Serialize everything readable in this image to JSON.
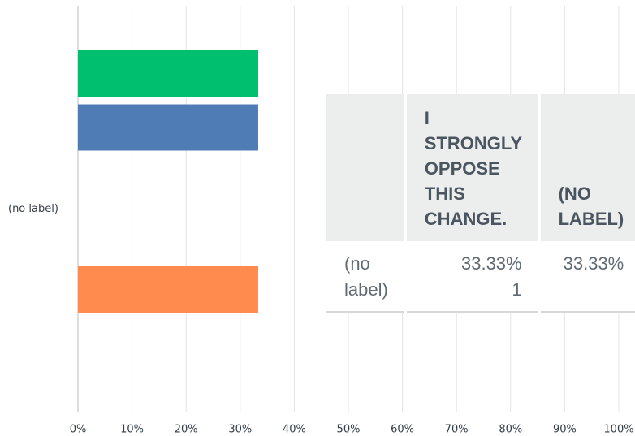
{
  "chart_data": {
    "type": "bar",
    "orientation": "horizontal",
    "categories": [
      "(no label)"
    ],
    "series": [
      {
        "color": "#00bf6f",
        "values": [
          33.33
        ]
      },
      {
        "color": "#507cb6",
        "values": [
          33.33
        ]
      },
      {
        "color": "#f9be00",
        "values": [
          0
        ]
      },
      {
        "color": "#6bc8cd",
        "values": [
          0
        ]
      },
      {
        "color": "#ff8b4f",
        "values": [
          33.33
        ]
      }
    ],
    "xlim": [
      0,
      100
    ],
    "xticks": [
      {
        "value": 0,
        "label": "0%"
      },
      {
        "value": 10,
        "label": "10%"
      },
      {
        "value": 20,
        "label": "20%"
      },
      {
        "value": 30,
        "label": "30%"
      },
      {
        "value": 40,
        "label": "40%"
      },
      {
        "value": 50,
        "label": "50%"
      },
      {
        "value": 60,
        "label": "60%"
      },
      {
        "value": 70,
        "label": "70%"
      },
      {
        "value": 80,
        "label": "80%"
      },
      {
        "value": 90,
        "label": "90%"
      },
      {
        "value": 100,
        "label": "100%"
      }
    ],
    "grid": true
  },
  "table": {
    "header": [
      "I STRONGLY OPPOSE THIS CHANGE.",
      "(NO LABEL)"
    ],
    "rows": [
      {
        "label": "(no label)",
        "cells": [
          {
            "percent": "33.33%",
            "count": 1
          },
          {
            "percent": "33.33%"
          }
        ]
      }
    ]
  }
}
